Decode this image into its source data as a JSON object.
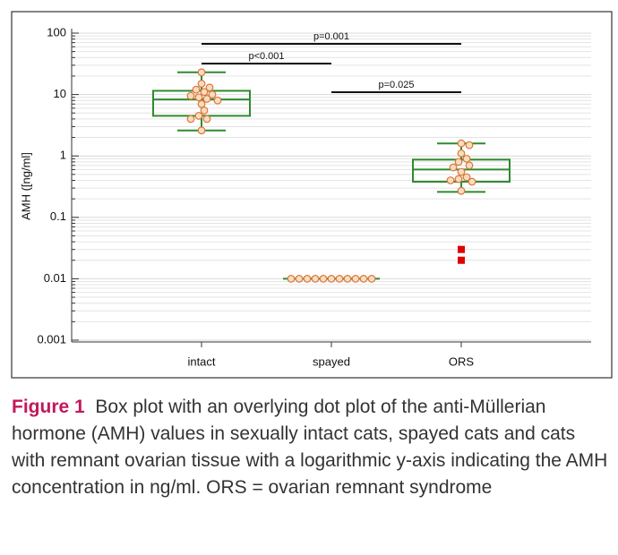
{
  "chart_data": {
    "type": "box",
    "y_label": "AMH ([ng/ml]",
    "categories": [
      "intact",
      "spayed",
      "ORS"
    ],
    "boxes": [
      {
        "whisker_low": 2.6,
        "q1": 4.5,
        "median": 8.3,
        "q3": 11.5,
        "whisker_high": 23,
        "points": [
          23,
          15,
          13,
          12,
          11,
          10,
          9.5,
          9,
          8.5,
          8,
          7,
          5.5,
          4.5,
          4,
          4,
          2.6
        ],
        "outliers": []
      },
      {
        "whisker_low": 0.01,
        "q1": 0.01,
        "median": 0.01,
        "q3": 0.01,
        "whisker_high": 0.01,
        "points": [
          0.01,
          0.01,
          0.01,
          0.01,
          0.01,
          0.01,
          0.01,
          0.01,
          0.01,
          0.01,
          0.01
        ],
        "outliers": []
      },
      {
        "whisker_low": 0.26,
        "q1": 0.38,
        "median": 0.6,
        "q3": 0.87,
        "whisker_high": 1.6,
        "points": [
          1.6,
          1.5,
          1.1,
          0.9,
          0.8,
          0.7,
          0.65,
          0.55,
          0.45,
          0.42,
          0.4,
          0.38,
          0.27
        ],
        "outliers": [
          0.03,
          0.02
        ]
      }
    ],
    "comparisons": [
      {
        "groups": [
          "intact",
          "ORS"
        ],
        "label": "p=0.001"
      },
      {
        "groups": [
          "intact",
          "spayed"
        ],
        "label": "p<0.001"
      },
      {
        "groups": [
          "spayed",
          "ORS"
        ],
        "label": "p=0.025"
      }
    ],
    "log_scale": true,
    "ylim": [
      0.001,
      100
    ],
    "yticks": [
      100,
      10,
      1,
      0.1,
      0.01,
      0.001
    ],
    "minor_grid": true,
    "box_color": "#2e8b2e",
    "point_fill": "#f8dcc0",
    "point_color": "#d9773a",
    "outlier_color": "#e00000"
  },
  "caption": {
    "label": "Figure 1",
    "text": "Box plot with an overlying dot plot of the anti-Müllerian hormone (AMH) values in sexually intact cats, spayed cats and cats with remnant ovarian tissue with a logarithmic y-axis indicating the AMH concentration in ng/ml. ORS = ovarian remnant syndrome"
  }
}
